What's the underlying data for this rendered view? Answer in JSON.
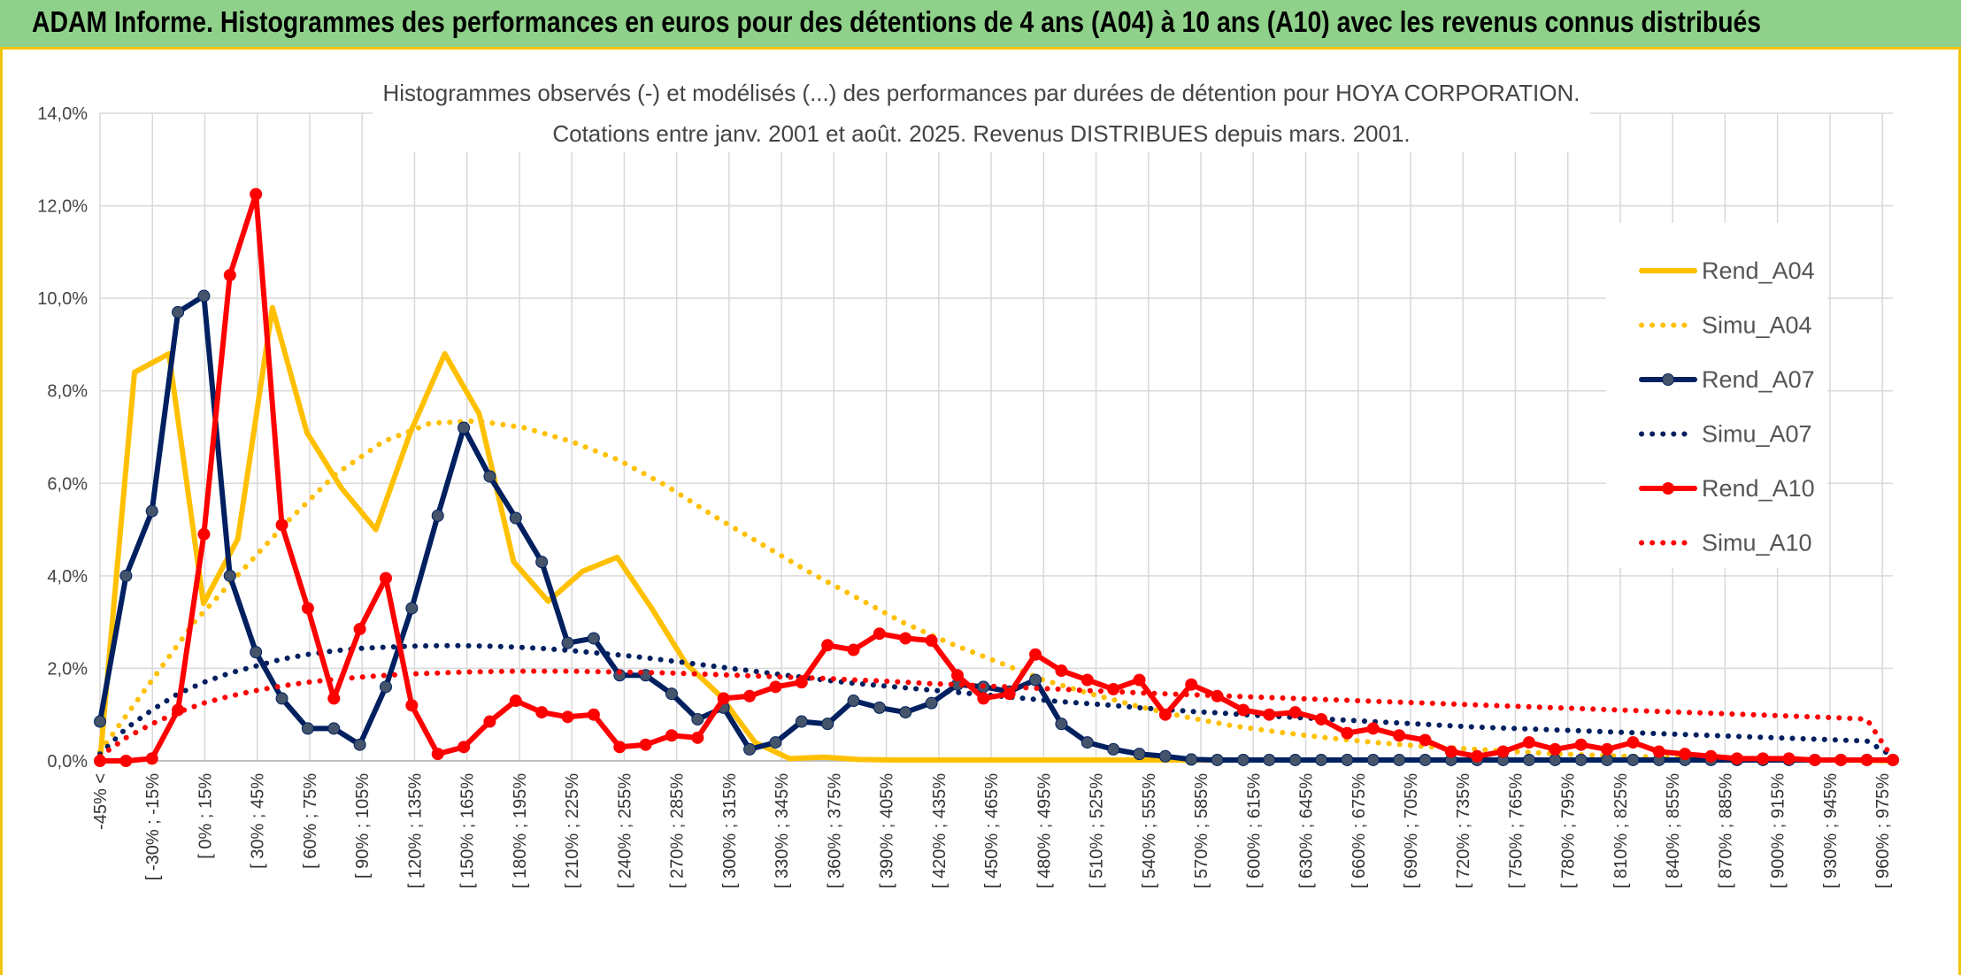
{
  "banner": {
    "title": "ADAM Informe. Histogrammes des performances en euros pour des détentions de 4 ans (A04) à 10 ans (A10) avec les revenus connus distribués"
  },
  "chart_data": {
    "type": "line",
    "title": [
      "Histogrammes observés (-) et modélisés (...) des performances par durées de détention pour HOYA CORPORATION.",
      "Cotations entre janv. 2001 et août. 2025. Revenus DISTRIBUES depuis mars. 2001."
    ],
    "xlabel": "",
    "ylabel": "",
    "ylim": [
      0,
      14
    ],
    "y_ticks": [
      "0,0%",
      "2,0%",
      "4,0%",
      "6,0%",
      "8,0%",
      "10,0%",
      "12,0%",
      "14,0%"
    ],
    "grid": true,
    "legend_position": "right",
    "x_tick_labels": [
      "-45% <",
      "[ -30% ; -15%",
      "[ 0% ; 15%",
      "[ 30% ; 45%",
      "[ 60% ; 75%",
      "[ 90% ; 105%",
      "[ 120% ; 135%",
      "[ 150% ; 165%",
      "[ 180% ; 195%",
      "[ 210% ; 225%",
      "[ 240% ; 255%",
      "[ 270% ; 285%",
      "[ 300% ; 315%",
      "[ 330% ; 345%",
      "[ 360% ; 375%",
      "[ 390% ; 405%",
      "[ 420% ; 435%",
      "[ 450% ; 465%",
      "[ 480% ; 495%",
      "[ 510% ; 525%",
      "[ 540% ; 555%",
      "[ 570% ; 585%",
      "[ 600% ; 615%",
      "[ 630% ; 645%",
      "[ 660% ; 675%",
      "[ 690% ; 705%",
      "[ 720% ; 735%",
      "[ 750% ; 765%",
      "[ 780% ; 795%",
      "[ 810% ; 825%",
      "[ 840% ; 855%",
      "[ 870% ; 885%",
      "[ 900% ; 915%",
      "[ 930% ; 945%",
      "[ 960% ; 975%"
    ],
    "series": [
      {
        "name": "Rend_A04",
        "style": "solid",
        "markers": false,
        "color": "#ffc000",
        "values": [
          0,
          8.4,
          8.8,
          3.4,
          4.8,
          9.8,
          7.1,
          5.9,
          5.0,
          7.1,
          8.8,
          7.5,
          4.3,
          3.45,
          4.1,
          4.4,
          3.3,
          2.1,
          1.4,
          0.4,
          0.05,
          0.08,
          0.03,
          0.02,
          0.02,
          0.02,
          0.02,
          0.02,
          0.02,
          0.02,
          0.02,
          0.02,
          0.02,
          0.02,
          0.02,
          0.02,
          0.02,
          0.02,
          0.02,
          0.02,
          0.02,
          0.02,
          0.02,
          0.02,
          0.02,
          0.02,
          0.02,
          0.02,
          0.02,
          0.02,
          0.02,
          0.02,
          0.0
        ]
      },
      {
        "name": "Simu_A04",
        "style": "dotted",
        "markers": false,
        "color": "#ffc000",
        "values": [
          0.2,
          1.6,
          3.0,
          4.1,
          5.2,
          6.2,
          6.9,
          7.3,
          7.35,
          7.2,
          6.9,
          6.5,
          5.95,
          5.3,
          4.7,
          4.1,
          3.55,
          3.0,
          2.55,
          2.15,
          1.75,
          1.45,
          1.18,
          0.95,
          0.76,
          0.62,
          0.5,
          0.4,
          0.32,
          0.26,
          0.2,
          0.15,
          0.11,
          0.08,
          0.05,
          0.03,
          0.02,
          0.01,
          0.0
        ]
      },
      {
        "name": "Rend_A07",
        "style": "solid",
        "markers": true,
        "color": "#002060",
        "values": [
          0.85,
          4.0,
          5.4,
          9.7,
          10.05,
          4.0,
          2.35,
          1.35,
          0.7,
          0.7,
          0.35,
          1.6,
          3.3,
          5.3,
          7.2,
          6.15,
          5.25,
          4.3,
          2.55,
          2.65,
          1.85,
          1.85,
          1.45,
          0.9,
          1.15,
          0.25,
          0.4,
          0.85,
          0.8,
          1.3,
          1.15,
          1.05,
          1.25,
          1.65,
          1.6,
          1.5,
          1.75,
          0.8,
          0.4,
          0.25,
          0.15,
          0.1,
          0.03,
          0.02,
          0.02,
          0.02,
          0.02,
          0.02,
          0.02,
          0.02,
          0.02,
          0.02,
          0.02,
          0.02,
          0.02,
          0.02,
          0.02,
          0.02,
          0.02,
          0.02,
          0.02,
          0.02,
          0.02,
          0.02,
          0.02,
          0.02,
          0.02,
          0.02,
          0.02,
          0.02
        ]
      },
      {
        "name": "Simu_A07",
        "style": "dotted",
        "markers": false,
        "color": "#002060",
        "values": [
          0.15,
          0.7,
          1.1,
          1.45,
          1.7,
          1.9,
          2.05,
          2.2,
          2.3,
          2.38,
          2.43,
          2.46,
          2.48,
          2.49,
          2.49,
          2.48,
          2.46,
          2.43,
          2.39,
          2.34,
          2.29,
          2.23,
          2.16,
          2.09,
          2.02,
          1.95,
          1.88,
          1.81,
          1.74,
          1.68,
          1.63,
          1.58,
          1.53,
          1.48,
          1.43,
          1.38,
          1.33,
          1.28,
          1.24,
          1.2,
          1.15,
          1.11,
          1.07,
          1.04,
          1.0,
          0.97,
          0.94,
          0.91,
          0.88,
          0.85,
          0.82,
          0.79,
          0.76,
          0.73,
          0.71,
          0.69,
          0.67,
          0.65,
          0.63,
          0.61,
          0.59,
          0.57,
          0.55,
          0.53,
          0.51,
          0.49,
          0.47,
          0.45,
          0.43,
          0.1
        ]
      },
      {
        "name": "Rend_A10",
        "style": "solid",
        "markers": true,
        "color": "#ff0000",
        "values": [
          0,
          0,
          0.05,
          1.1,
          4.9,
          10.5,
          12.25,
          5.1,
          3.3,
          1.35,
          2.85,
          3.95,
          1.2,
          0.15,
          0.3,
          0.85,
          1.3,
          1.05,
          0.95,
          1.0,
          0.3,
          0.35,
          0.55,
          0.5,
          1.35,
          1.4,
          1.6,
          1.7,
          2.5,
          2.4,
          2.75,
          2.65,
          2.6,
          1.85,
          1.35,
          1.45,
          2.3,
          1.95,
          1.75,
          1.55,
          1.75,
          1.0,
          1.65,
          1.4,
          1.1,
          1.0,
          1.05,
          0.9,
          0.6,
          0.7,
          0.55,
          0.45,
          0.2,
          0.1,
          0.2,
          0.4,
          0.25,
          0.35,
          0.25,
          0.4,
          0.2,
          0.15,
          0.1,
          0.05,
          0.05,
          0.05,
          0.02,
          0.02,
          0.02,
          0.02
        ]
      },
      {
        "name": "Simu_A10",
        "style": "dotted",
        "markers": false,
        "color": "#ff0000",
        "values": [
          0.1,
          0.5,
          0.8,
          1.05,
          1.25,
          1.4,
          1.52,
          1.62,
          1.7,
          1.76,
          1.81,
          1.85,
          1.88,
          1.9,
          1.92,
          1.93,
          1.94,
          1.94,
          1.94,
          1.93,
          1.92,
          1.91,
          1.9,
          1.88,
          1.86,
          1.84,
          1.82,
          1.8,
          1.78,
          1.75,
          1.73,
          1.7,
          1.67,
          1.65,
          1.62,
          1.6,
          1.57,
          1.55,
          1.52,
          1.5,
          1.47,
          1.45,
          1.43,
          1.41,
          1.39,
          1.37,
          1.35,
          1.33,
          1.31,
          1.29,
          1.27,
          1.25,
          1.23,
          1.21,
          1.19,
          1.17,
          1.15,
          1.13,
          1.11,
          1.09,
          1.07,
          1.05,
          1.03,
          1.01,
          0.99,
          0.97,
          0.95,
          0.93,
          0.9,
          0.05
        ]
      }
    ]
  }
}
